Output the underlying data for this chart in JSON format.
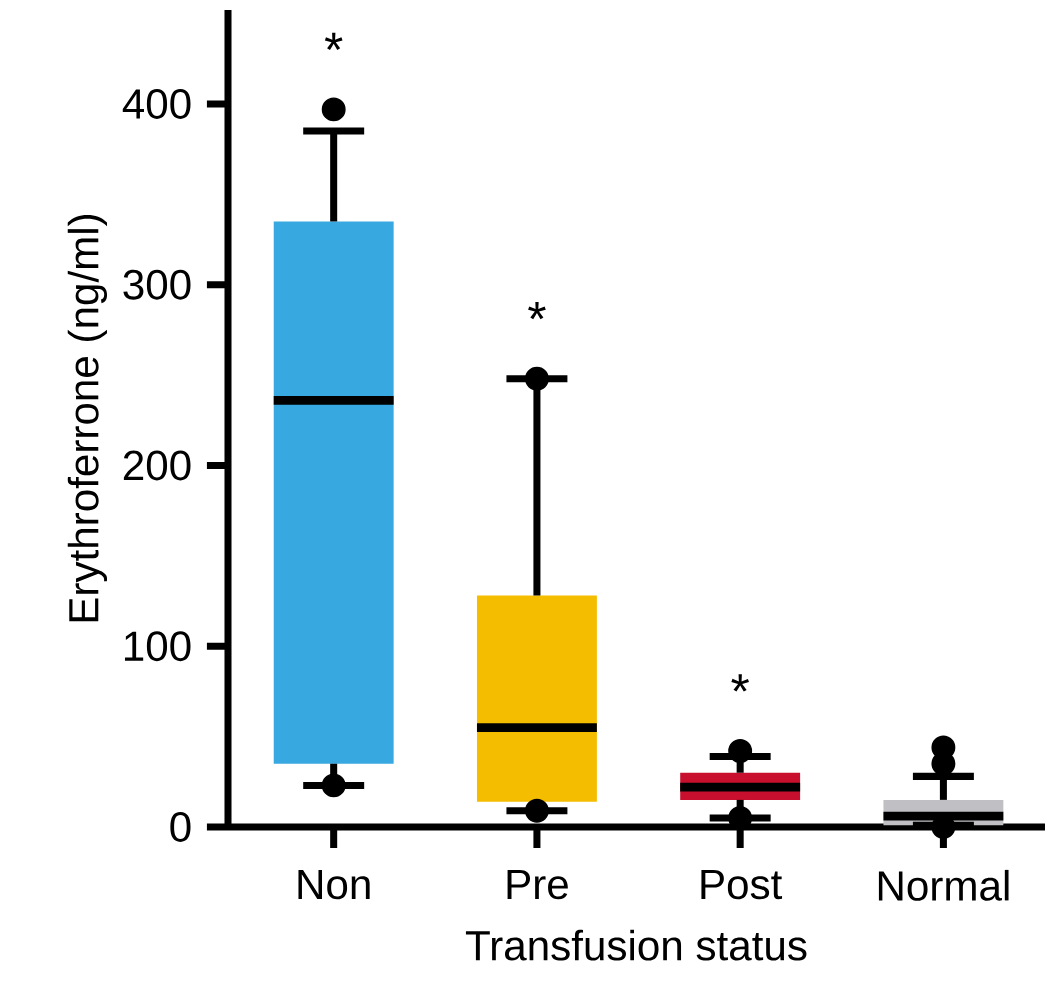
{
  "chart_data": {
    "type": "box",
    "xlabel": "Transfusion status",
    "ylabel": "Erythroferrone (ng/ml)",
    "categories": [
      "Non",
      "Pre",
      "Post",
      "Normal"
    ],
    "colors": [
      "#37a9e0",
      "#f5bd00",
      "#c8102e",
      "#c0c0c4"
    ],
    "boxes": [
      {
        "low": 23,
        "q1": 35,
        "median": 236,
        "q3": 335,
        "high": 385,
        "outliers": [
          397,
          23
        ]
      },
      {
        "low": 9,
        "q1": 14,
        "median": 55,
        "q3": 128,
        "high": 248,
        "outliers": [
          248,
          9
        ]
      },
      {
        "low": 5,
        "q1": 15,
        "median": 22,
        "q3": 30,
        "high": 39,
        "outliers": [
          42,
          5
        ]
      },
      {
        "low": 1,
        "q1": 1,
        "median": 6,
        "q3": 15,
        "high": 28,
        "outliers": [
          44,
          35,
          0
        ]
      }
    ],
    "ylim": [
      0,
      452
    ],
    "yticks": [
      0,
      100,
      200,
      300,
      400
    ],
    "grid": false,
    "annotations": [
      "*",
      "*",
      "*"
    ]
  }
}
